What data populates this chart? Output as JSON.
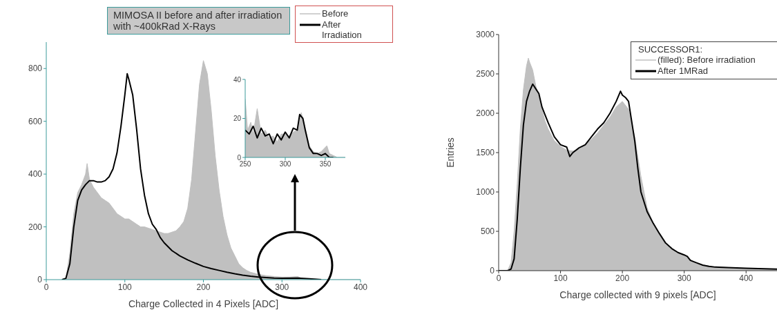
{
  "chart_data": [
    {
      "type": "line",
      "title": "MIMOSA II before and after irradiation with ~400kRad X-Rays",
      "xlabel": "Charge Collected in 4 Pixels [ADC]",
      "xlim": [
        0,
        400
      ],
      "xticks": [
        0,
        100,
        200,
        300,
        400
      ],
      "ylim": [
        0,
        900
      ],
      "yticks": [
        0,
        200,
        400,
        600,
        800
      ],
      "legend": "top right",
      "marker": "none",
      "series": [
        {
          "name": "Before",
          "type": "area",
          "color": "#c0c0c0",
          "x": [
            20,
            25,
            30,
            35,
            40,
            45,
            50,
            52,
            55,
            60,
            65,
            70,
            75,
            80,
            85,
            90,
            95,
            100,
            105,
            110,
            115,
            120,
            125,
            130,
            135,
            140,
            145,
            150,
            155,
            160,
            165,
            170,
            175,
            180,
            185,
            190,
            195,
            200,
            205,
            210,
            215,
            220,
            225,
            230,
            235,
            240,
            245,
            250,
            255,
            260,
            270,
            280,
            290,
            300,
            310,
            320,
            325,
            340,
            360,
            400
          ],
          "values": [
            0,
            5,
            100,
            250,
            330,
            360,
            400,
            440,
            380,
            350,
            330,
            310,
            300,
            290,
            270,
            250,
            240,
            230,
            230,
            220,
            210,
            200,
            200,
            195,
            190,
            185,
            180,
            175,
            175,
            180,
            185,
            200,
            220,
            270,
            380,
            560,
            740,
            830,
            780,
            640,
            470,
            340,
            240,
            170,
            120,
            90,
            60,
            45,
            35,
            28,
            20,
            15,
            12,
            10,
            10,
            12,
            5,
            3,
            0,
            0
          ]
        },
        {
          "name": "After Irradiation",
          "color": "#000000",
          "x": [
            20,
            25,
            30,
            35,
            40,
            45,
            50,
            55,
            60,
            65,
            70,
            75,
            80,
            85,
            90,
            95,
            100,
            103,
            105,
            110,
            115,
            120,
            125,
            130,
            135,
            140,
            145,
            150,
            155,
            160,
            170,
            180,
            190,
            200,
            210,
            220,
            230,
            240,
            250,
            260,
            270,
            280,
            290,
            300,
            320,
            335,
            350
          ],
          "values": [
            0,
            5,
            60,
            200,
            300,
            340,
            360,
            375,
            375,
            370,
            370,
            375,
            390,
            420,
            480,
            580,
            700,
            780,
            760,
            700,
            570,
            420,
            320,
            250,
            210,
            190,
            160,
            140,
            125,
            110,
            90,
            75,
            62,
            50,
            42,
            35,
            28,
            22,
            17,
            13,
            10,
            8,
            6,
            5,
            6,
            3,
            0
          ]
        }
      ]
    },
    {
      "type": "line",
      "xlim": [
        250,
        375
      ],
      "xticks": [
        250,
        300,
        350
      ],
      "ylim": [
        0,
        40
      ],
      "yticks": [
        0,
        20,
        40
      ],
      "marker": "none",
      "series": [
        {
          "type": "area",
          "color": "#c0c0c0",
          "x": [
            250,
            253,
            257,
            260,
            265,
            270,
            275,
            280,
            285,
            290,
            295,
            300,
            305,
            310,
            315,
            320,
            325,
            330,
            335,
            340,
            345,
            352,
            355,
            360,
            365,
            375
          ],
          "values": [
            30,
            14,
            18,
            12,
            25,
            12,
            14,
            10,
            11,
            8,
            12,
            12,
            11,
            13,
            14,
            23,
            15,
            6,
            3,
            2,
            3,
            6,
            2,
            1,
            0,
            0
          ]
        },
        {
          "color": "#000000",
          "x": [
            250,
            255,
            260,
            265,
            270,
            275,
            280,
            285,
            290,
            295,
            300,
            305,
            310,
            315,
            318,
            322,
            325,
            330,
            335,
            340,
            345,
            350,
            355,
            360
          ],
          "values": [
            14,
            12,
            16,
            10,
            15,
            11,
            12,
            7,
            12,
            9,
            13,
            10,
            15,
            14,
            22,
            20,
            14,
            5,
            2,
            2,
            1,
            2,
            0,
            0
          ]
        }
      ]
    },
    {
      "type": "line",
      "xlabel": "Charge collected with 9 pixels [ADC]",
      "ylabel": "Entries",
      "legend_title": "SUCCESSOR1:",
      "xlim": [
        0,
        450
      ],
      "xticks": [
        0,
        100,
        200,
        300,
        400
      ],
      "ylim": [
        0,
        3000
      ],
      "yticks": [
        0,
        500,
        1000,
        1500,
        2000,
        2500,
        3000
      ],
      "legend": "top right",
      "marker": "none",
      "series": [
        {
          "name": "(filled): Before irradiation",
          "type": "area",
          "color": "#c0c0c0",
          "x": [
            0,
            10,
            15,
            20,
            25,
            30,
            35,
            40,
            45,
            48,
            50,
            55,
            60,
            65,
            70,
            75,
            80,
            90,
            100,
            110,
            120,
            130,
            140,
            150,
            160,
            170,
            180,
            190,
            200,
            210,
            220,
            230,
            240,
            250,
            260,
            270,
            280,
            290,
            300,
            310,
            320,
            330,
            340,
            350,
            370,
            400,
            450
          ],
          "values": [
            0,
            0,
            10,
            100,
            500,
            1100,
            1800,
            2300,
            2600,
            2700,
            2650,
            2550,
            2350,
            2200,
            2050,
            1900,
            1800,
            1650,
            1580,
            1530,
            1520,
            1540,
            1600,
            1670,
            1750,
            1850,
            1950,
            2080,
            2150,
            2050,
            1700,
            1200,
            800,
            600,
            450,
            330,
            280,
            230,
            200,
            140,
            90,
            70,
            60,
            50,
            40,
            30,
            20
          ]
        },
        {
          "name": "After 1MRad",
          "color": "#000000",
          "x": [
            0,
            15,
            20,
            25,
            30,
            35,
            40,
            45,
            50,
            55,
            60,
            65,
            70,
            75,
            80,
            90,
            100,
            110,
            115,
            120,
            130,
            140,
            150,
            160,
            170,
            180,
            190,
            197,
            200,
            205,
            210,
            215,
            220,
            225,
            230,
            240,
            250,
            260,
            270,
            280,
            290,
            300,
            305,
            310,
            320,
            330,
            340,
            350,
            370,
            400,
            450
          ],
          "values": [
            0,
            0,
            20,
            150,
            650,
            1300,
            1850,
            2150,
            2280,
            2370,
            2310,
            2250,
            2080,
            1980,
            1880,
            1700,
            1600,
            1570,
            1450,
            1500,
            1560,
            1600,
            1700,
            1800,
            1880,
            2000,
            2150,
            2280,
            2230,
            2200,
            2150,
            1900,
            1650,
            1300,
            1000,
            750,
            600,
            470,
            350,
            280,
            230,
            200,
            180,
            130,
            100,
            70,
            55,
            45,
            40,
            30,
            20
          ]
        }
      ]
    }
  ]
}
